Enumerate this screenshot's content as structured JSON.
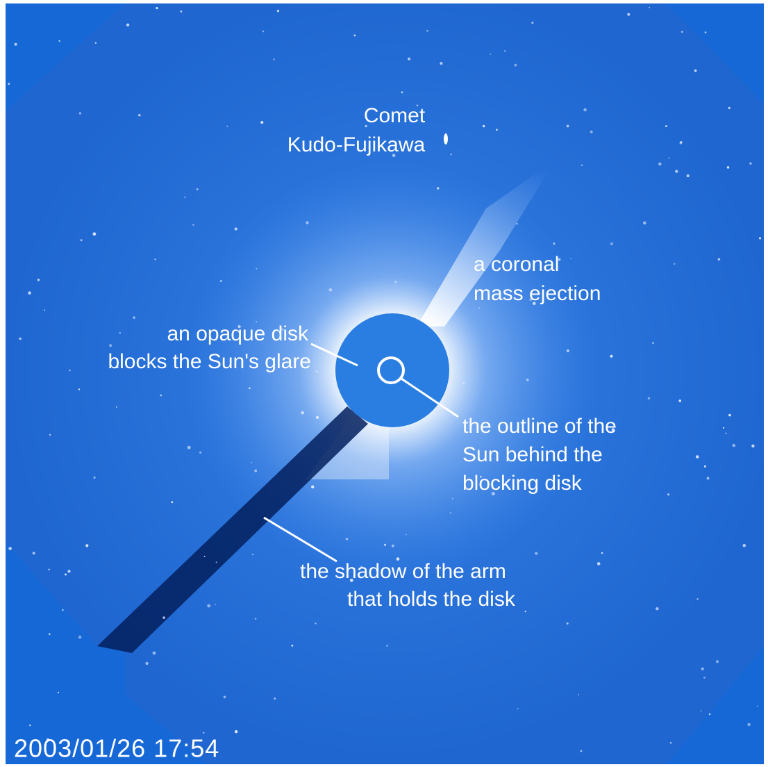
{
  "labels": {
    "comet": [
      "Comet",
      "Kudo-Fujikawa"
    ],
    "cme": [
      "a coronal",
      "mass ejection"
    ],
    "disk": [
      "an opaque disk",
      "blocks the Sun's glare"
    ],
    "outline": [
      "the outline of the",
      "Sun behind the",
      "blocking disk"
    ],
    "shadow": [
      "the shadow of the arm",
      "that holds the disk"
    ]
  },
  "timestamp": "2003/01/26 17:54"
}
